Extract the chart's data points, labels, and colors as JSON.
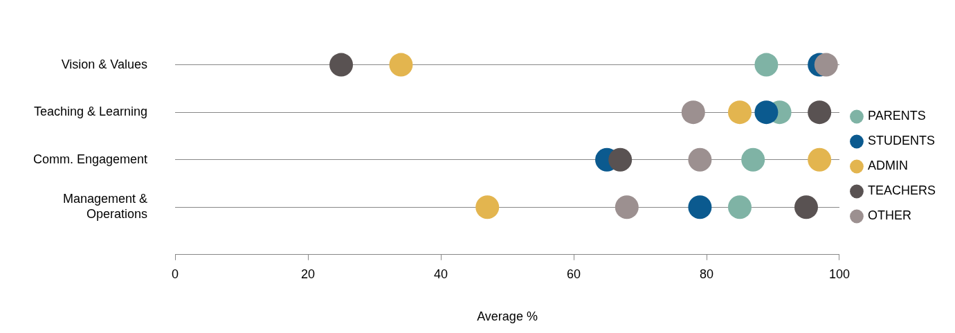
{
  "chart_data": {
    "type": "scatter",
    "xlabel": "Average %",
    "categories": [
      "Vision & Values",
      "Teaching & Learning",
      "Comm. Engagement",
      "Management & Operations"
    ],
    "series": [
      {
        "name": "PARENTS",
        "color": "#7fb3a5",
        "values": [
          89,
          91,
          87,
          85
        ]
      },
      {
        "name": "STUDENTS",
        "color": "#0b5a8f",
        "values": [
          97,
          89,
          65,
          79
        ]
      },
      {
        "name": "ADMIN",
        "color": "#e3b54f",
        "values": [
          34,
          85,
          97,
          47
        ]
      },
      {
        "name": "TEACHERS",
        "color": "#595252",
        "values": [
          25,
          97,
          67,
          95
        ]
      },
      {
        "name": "OTHER",
        "color": "#9c9090",
        "values": [
          98,
          78,
          79,
          68
        ]
      }
    ],
    "orientation": "horizontal",
    "xlim": [
      0,
      100
    ],
    "xticks": [
      0,
      20,
      40,
      60,
      80,
      100
    ],
    "grid": "y",
    "legend": "right",
    "marker": "circle"
  }
}
